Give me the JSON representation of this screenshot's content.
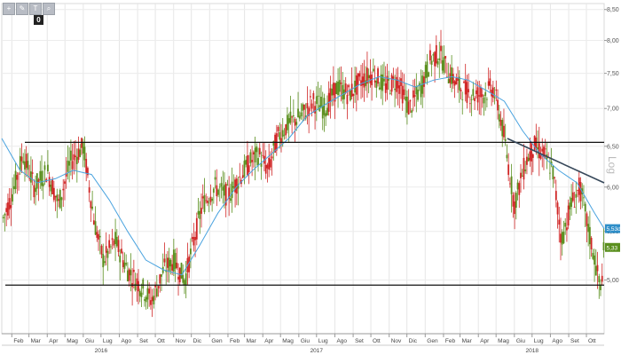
{
  "toolbar": {
    "icons": [
      "crosshair-icon",
      "pencil-icon",
      "text-icon",
      "zoom-icon"
    ],
    "badge": "0"
  },
  "chart_data": {
    "type": "line",
    "title": "",
    "scale": "log",
    "ylabel": "Log",
    "ylim": [
      4.5,
      8.6
    ],
    "y_ticks": [
      "8,50",
      "8,00",
      "7,50",
      "7,00",
      "6,50",
      "6,00",
      "5,50",
      "5,00"
    ],
    "y_tick_values": [
      8.5,
      8.0,
      7.5,
      7.0,
      6.5,
      6.0,
      5.5,
      5.0
    ],
    "x_range": [
      "2016-01-15",
      "2018-10-31"
    ],
    "x_months": [
      {
        "label": "Feb",
        "date": "2016-02-01"
      },
      {
        "label": "Mar",
        "date": "2016-03-01"
      },
      {
        "label": "Apr",
        "date": "2016-04-01"
      },
      {
        "label": "Mag",
        "date": "2016-05-01"
      },
      {
        "label": "Giu",
        "date": "2016-06-01"
      },
      {
        "label": "Lug",
        "date": "2016-07-01"
      },
      {
        "label": "Ago",
        "date": "2016-08-01"
      },
      {
        "label": "Set",
        "date": "2016-09-01"
      },
      {
        "label": "Ott",
        "date": "2016-10-01"
      },
      {
        "label": "Nov",
        "date": "2016-11-01"
      },
      {
        "label": "Dic",
        "date": "2016-12-01"
      },
      {
        "label": "Gen",
        "date": "2017-01-01"
      },
      {
        "label": "Feb",
        "date": "2017-02-01"
      },
      {
        "label": "Mar",
        "date": "2017-03-01"
      },
      {
        "label": "Apr",
        "date": "2017-04-01"
      },
      {
        "label": "Mag",
        "date": "2017-05-01"
      },
      {
        "label": "Giu",
        "date": "2017-06-01"
      },
      {
        "label": "Lug",
        "date": "2017-07-01"
      },
      {
        "label": "Ago",
        "date": "2017-08-01"
      },
      {
        "label": "Set",
        "date": "2017-09-01"
      },
      {
        "label": "Ott",
        "date": "2017-10-01"
      },
      {
        "label": "Nov",
        "date": "2017-11-01"
      },
      {
        "label": "Dic",
        "date": "2017-12-01"
      },
      {
        "label": "Gen",
        "date": "2018-01-01"
      },
      {
        "label": "Feb",
        "date": "2018-02-01"
      },
      {
        "label": "Mar",
        "date": "2018-03-01"
      },
      {
        "label": "Apr",
        "date": "2018-04-01"
      },
      {
        "label": "Mag",
        "date": "2018-05-01"
      },
      {
        "label": "Giu",
        "date": "2018-06-01"
      },
      {
        "label": "Lug",
        "date": "2018-07-01"
      },
      {
        "label": "Ago",
        "date": "2018-08-01"
      },
      {
        "label": "Set",
        "date": "2018-09-01"
      },
      {
        "label": "Ott",
        "date": "2018-10-01"
      }
    ],
    "x_years": [
      {
        "label": "2016",
        "date": "2016-07-01"
      },
      {
        "label": "2017",
        "date": "2017-07-01"
      },
      {
        "label": "2018",
        "date": "2018-07-01"
      }
    ],
    "price_series": {
      "dates": [
        "2016-01-15",
        "2016-02-01",
        "2016-02-20",
        "2016-03-10",
        "2016-04-01",
        "2016-04-20",
        "2016-05-10",
        "2016-06-01",
        "2016-06-20",
        "2016-07-05",
        "2016-07-25",
        "2016-08-15",
        "2016-09-05",
        "2016-09-25",
        "2016-10-15",
        "2016-11-01",
        "2016-11-20",
        "2016-12-05",
        "2016-12-20",
        "2017-01-10",
        "2017-02-01",
        "2017-02-20",
        "2017-03-10",
        "2017-03-25",
        "2017-04-10",
        "2017-04-25",
        "2017-05-15",
        "2017-06-05",
        "2017-06-25",
        "2017-07-15",
        "2017-08-05",
        "2017-08-25",
        "2017-09-15",
        "2017-10-05",
        "2017-10-25",
        "2017-11-15",
        "2017-12-05",
        "2017-12-25",
        "2018-01-10",
        "2018-01-25",
        "2018-02-10",
        "2018-02-28",
        "2018-03-20",
        "2018-04-10",
        "2018-04-25",
        "2018-05-05",
        "2018-05-15",
        "2018-06-01",
        "2018-06-20",
        "2018-07-05",
        "2018-07-20",
        "2018-08-05",
        "2018-08-20",
        "2018-09-05",
        "2018-09-20",
        "2018-10-05",
        "2018-10-15",
        "2018-10-25",
        "2018-10-31"
      ],
      "values": [
        5.6,
        5.9,
        6.4,
        6.0,
        6.2,
        5.8,
        6.3,
        6.5,
        5.6,
        5.2,
        5.4,
        5.1,
        4.95,
        4.8,
        5.1,
        5.2,
        5.0,
        5.4,
        5.8,
        6.0,
        5.9,
        6.1,
        6.3,
        6.4,
        6.2,
        6.6,
        6.8,
        6.9,
        7.1,
        7.0,
        7.3,
        7.2,
        7.4,
        7.5,
        7.3,
        7.4,
        7.0,
        7.3,
        7.7,
        7.8,
        7.5,
        7.3,
        7.2,
        7.2,
        7.3,
        7.0,
        6.6,
        5.8,
        6.3,
        6.5,
        6.4,
        6.2,
        5.4,
        5.8,
        6.0,
        5.5,
        5.2,
        4.9,
        5.33
      ]
    },
    "moving_average": {
      "dates": [
        "2016-01-15",
        "2016-02-15",
        "2016-03-15",
        "2016-04-15",
        "2016-05-15",
        "2016-06-15",
        "2016-07-15",
        "2016-08-15",
        "2016-09-15",
        "2016-10-15",
        "2016-11-15",
        "2016-12-15",
        "2017-01-15",
        "2017-02-15",
        "2017-03-15",
        "2017-04-15",
        "2017-05-15",
        "2017-06-15",
        "2017-07-15",
        "2017-08-15",
        "2017-09-15",
        "2017-10-15",
        "2017-11-15",
        "2017-12-15",
        "2018-01-15",
        "2018-02-15",
        "2018-03-15",
        "2018-04-15",
        "2018-05-15",
        "2018-06-15",
        "2018-07-15",
        "2018-08-15",
        "2018-09-15",
        "2018-10-15",
        "2018-10-31"
      ],
      "values": [
        6.6,
        6.2,
        6.05,
        6.1,
        6.2,
        6.15,
        5.85,
        5.5,
        5.2,
        5.1,
        5.05,
        5.35,
        5.7,
        6.0,
        6.2,
        6.4,
        6.6,
        6.9,
        7.05,
        7.2,
        7.35,
        7.45,
        7.4,
        7.3,
        7.4,
        7.45,
        7.4,
        7.25,
        7.1,
        6.7,
        6.4,
        6.2,
        6.05,
        5.7,
        5.53
      ]
    },
    "support_line": 4.95,
    "resistance_line": 6.55,
    "trendline": {
      "start": [
        "2018-05-20",
        6.6
      ],
      "end": [
        "2018-10-31",
        6.05
      ]
    },
    "last_labels": [
      {
        "text": "5,53d",
        "value": 5.53,
        "color": "#2e8ec8"
      },
      {
        "text": "5,33",
        "value": 5.33,
        "color": "#5a8f1e"
      }
    ],
    "colors": {
      "up": "#5a8f1e",
      "down": "#d02626",
      "ma": "#4aa3df",
      "levels": "#111111",
      "trend": "#37485a"
    }
  }
}
